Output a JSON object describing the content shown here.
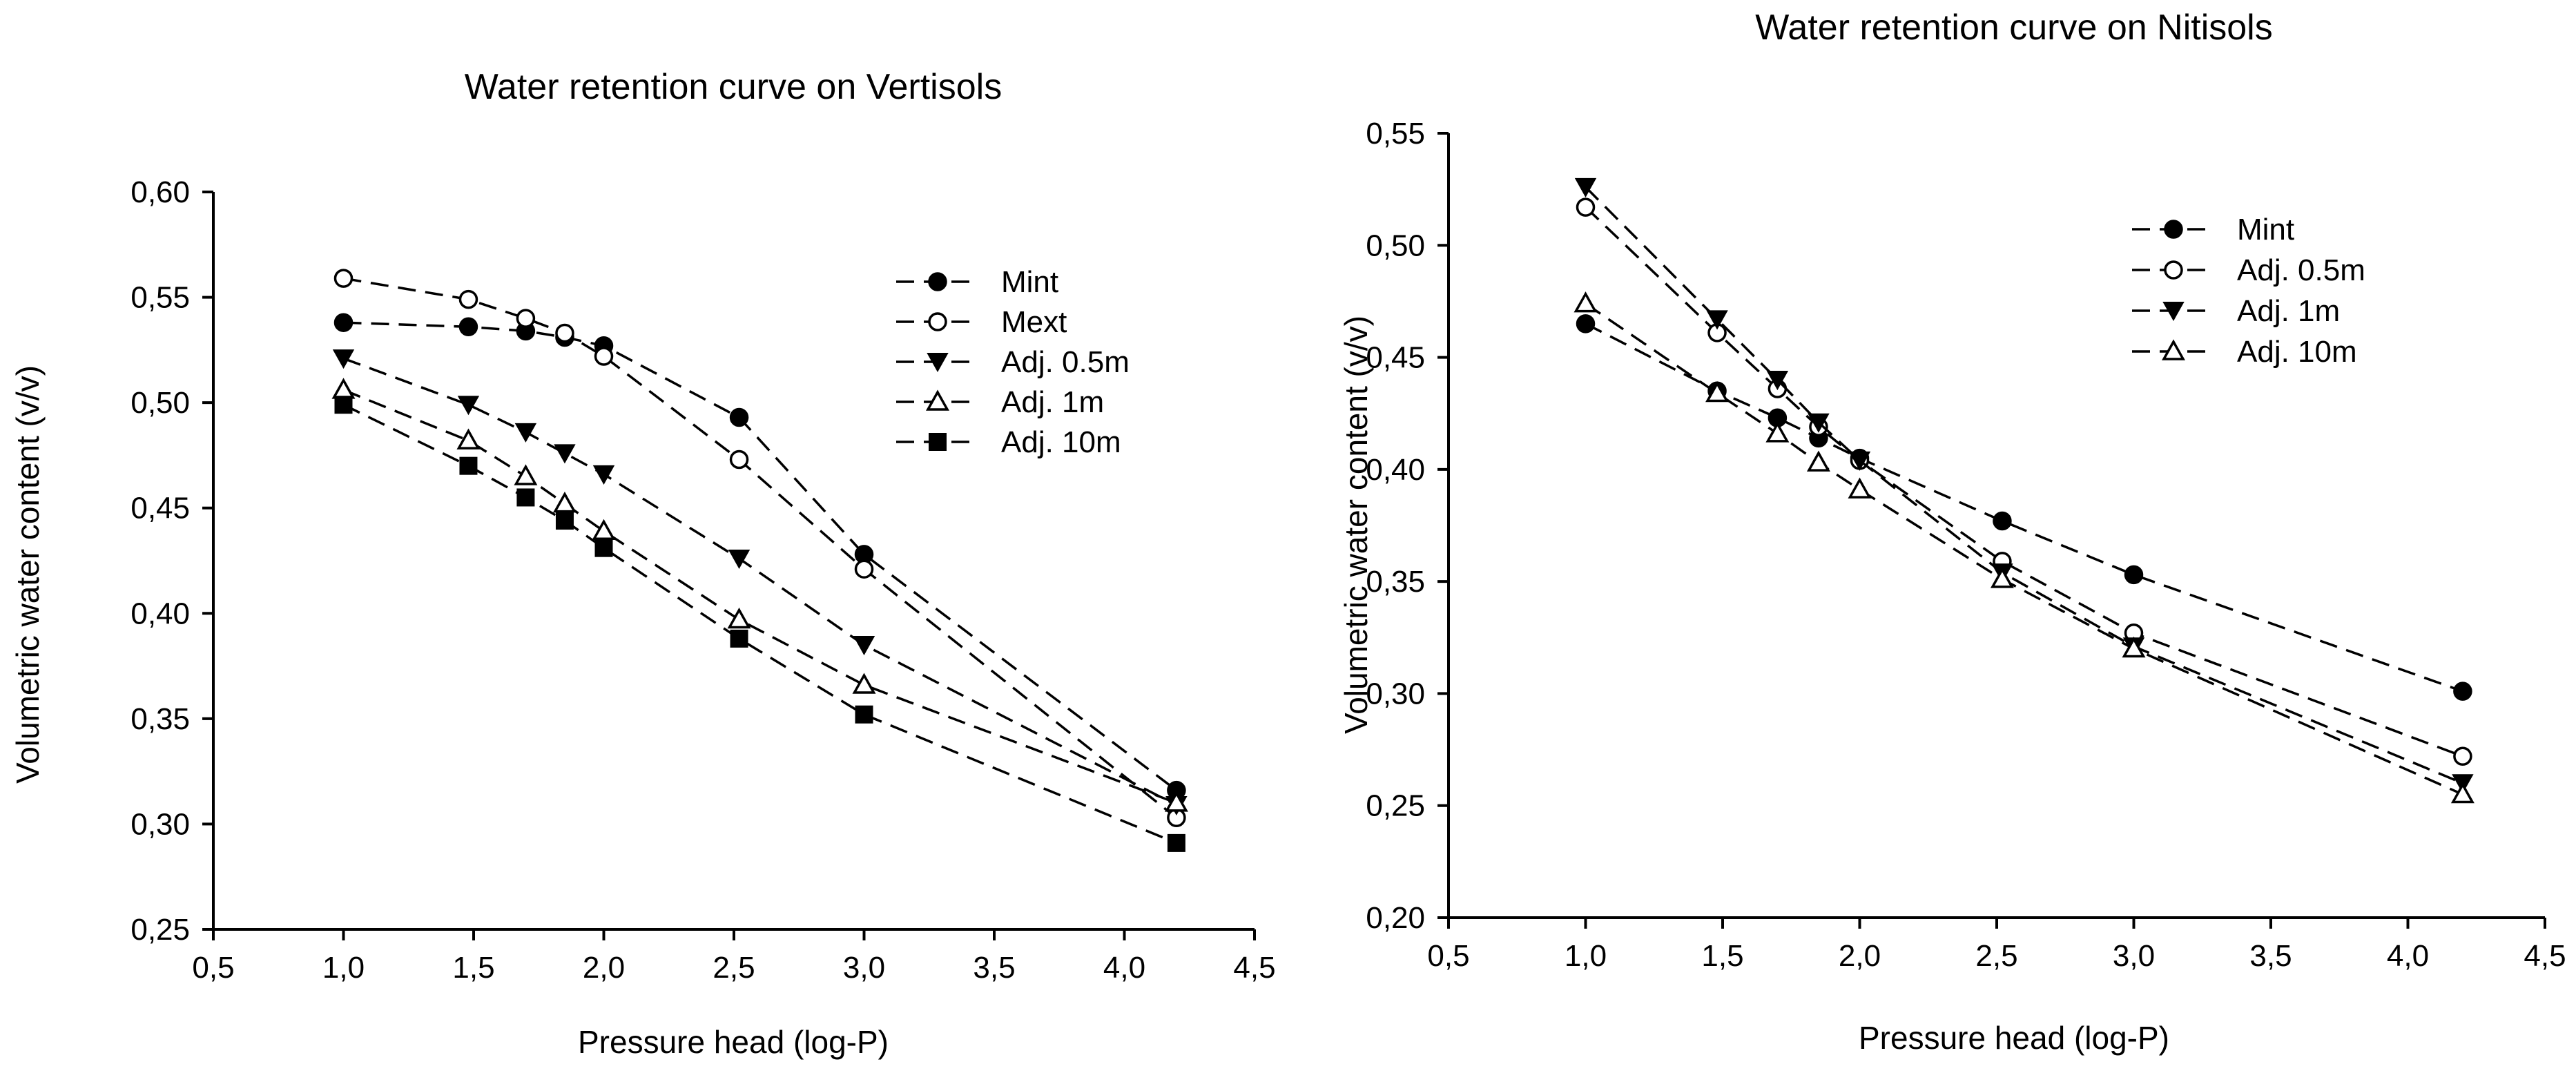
{
  "chart_data": [
    {
      "type": "line",
      "title": "Water retention curve on Vertisols",
      "xlabel": "Pressure head (log-P)",
      "ylabel": "Volumetric water content (v/v)",
      "xlim": [
        0.5,
        4.5
      ],
      "ylim": [
        0.25,
        0.6
      ],
      "xticks": [
        "0,5",
        "1,0",
        "1,5",
        "2,0",
        "2,5",
        "3,0",
        "3,5",
        "4,0",
        "4,5"
      ],
      "yticks": [
        "0,25",
        "0,30",
        "0,35",
        "0,40",
        "0,45",
        "0,50",
        "0,55",
        "0,60"
      ],
      "x": [
        1.0,
        1.48,
        1.7,
        1.85,
        2.0,
        2.52,
        3.0,
        4.2
      ],
      "series": [
        {
          "name": " Mint",
          "marker": "circle-filled",
          "values": [
            0.538,
            0.536,
            0.534,
            0.531,
            0.527,
            0.493,
            0.428,
            0.316
          ]
        },
        {
          "name": " Mext",
          "marker": "circle-open",
          "values": [
            0.559,
            0.549,
            0.54,
            0.533,
            0.522,
            0.473,
            0.421,
            0.303
          ]
        },
        {
          "name": "Adj. 0.5m",
          "marker": "triangle-down-filled",
          "values": [
            0.521,
            0.499,
            0.486,
            0.476,
            0.466,
            0.426,
            0.385,
            0.309
          ]
        },
        {
          "name": "Adj. 1m",
          "marker": "triangle-up-open",
          "values": [
            0.506,
            0.482,
            0.465,
            0.452,
            0.439,
            0.397,
            0.366,
            0.31
          ]
        },
        {
          "name": "Adj. 10m",
          "marker": "square-filled",
          "values": [
            0.499,
            0.47,
            0.455,
            0.444,
            0.431,
            0.388,
            0.352,
            0.291
          ]
        }
      ]
    },
    {
      "type": "line",
      "title": "Water retention curve on Nitisols",
      "xlabel": "Pressure head (log-P)",
      "ylabel": "Volumetric water content (v/v)",
      "xlim": [
        0.5,
        4.5
      ],
      "ylim": [
        0.2,
        0.55
      ],
      "xticks": [
        "0,5",
        "1,0",
        "1,5",
        "2,0",
        "2,5",
        "3,0",
        "3,5",
        "4,0",
        "4,5"
      ],
      "yticks": [
        "0,20",
        "0,25",
        "0,30",
        "0,35",
        "0,40",
        "0,45",
        "0,50",
        "0,55"
      ],
      "x": [
        1.0,
        1.48,
        1.7,
        1.85,
        2.0,
        2.52,
        3.0,
        4.2
      ],
      "series": [
        {
          "name": "Mint",
          "marker": "circle-filled",
          "values": [
            0.465,
            0.435,
            0.423,
            0.414,
            0.405,
            0.377,
            0.353,
            0.301
          ]
        },
        {
          "name": "Adj. 0.5m",
          "marker": "circle-open",
          "values": [
            0.517,
            0.461,
            0.436,
            0.419,
            0.404,
            0.359,
            0.327,
            0.272
          ]
        },
        {
          "name": " Adj. 1m",
          "marker": "triangle-down-filled",
          "values": [
            0.526,
            0.467,
            0.44,
            0.421,
            0.404,
            0.354,
            0.321,
            0.26
          ]
        },
        {
          "name": "Adj. 10m",
          "marker": "triangle-up-open",
          "values": [
            0.474,
            0.434,
            0.416,
            0.403,
            0.391,
            0.351,
            0.32,
            0.255
          ]
        }
      ]
    }
  ]
}
